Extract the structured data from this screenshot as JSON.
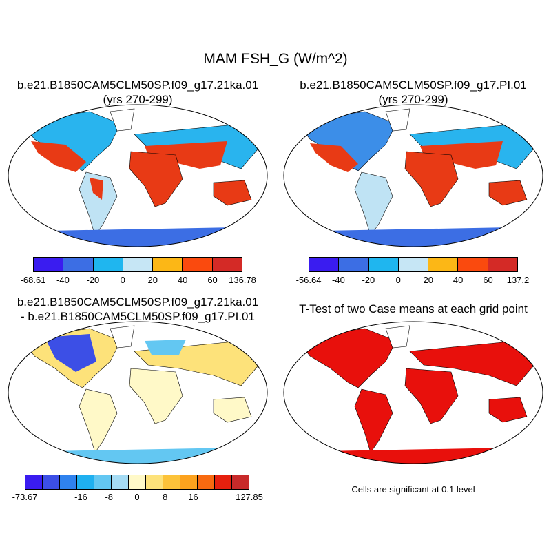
{
  "title": "MAM FSH_G (W/m^2)",
  "panels": [
    {
      "title_line1": "b.e21.B1850CAM5CLM50SP.f09_g17.21ka.01",
      "title_line2": "(yrs 270-299)",
      "colorbar": {
        "colors": [
          "#3a1cf0",
          "#3c6ee4",
          "#1fb6ef",
          "#c6e6f5",
          "#fcb716",
          "#fa4a0e",
          "#d42a26"
        ],
        "labels": [
          "-68.61",
          "-40",
          "-20",
          "0",
          "20",
          "40",
          "60",
          "136.78"
        ]
      }
    },
    {
      "title_line1": "b.e21.B1850CAM5CLM50SP.f09_g17.PI.01",
      "title_line2": "(yrs 270-299)",
      "colorbar": {
        "colors": [
          "#3a1cf0",
          "#3c6ee4",
          "#1fb6ef",
          "#c6e6f5",
          "#fcb716",
          "#fa4a0e",
          "#d42a26"
        ],
        "labels": [
          "-56.64",
          "-40",
          "-20",
          "0",
          "20",
          "40",
          "60",
          "137.2"
        ]
      }
    },
    {
      "title_line1": "b.e21.B1850CAM5CLM50SP.f09_g17.21ka.01",
      "title_line2": "- b.e21.B1850CAM5CLM50SP.f09_g17.PI.01",
      "colorbar": {
        "colors": [
          "#3a1cf0",
          "#3c4fe6",
          "#2f82ee",
          "#1fb0f0",
          "#63c7f2",
          "#a6dcf4",
          "#fff9c8",
          "#fde27a",
          "#fcc33a",
          "#fca21e",
          "#f86a10",
          "#e6200e",
          "#c82a2a"
        ],
        "labels": [
          "-73.67",
          "",
          "-16",
          "-8",
          "0",
          "8",
          "16",
          "",
          "127.85"
        ]
      }
    },
    {
      "title_line1": "T-Test of two Case means at each grid point",
      "note": "Cells are significant at 0.1 level"
    }
  ]
}
